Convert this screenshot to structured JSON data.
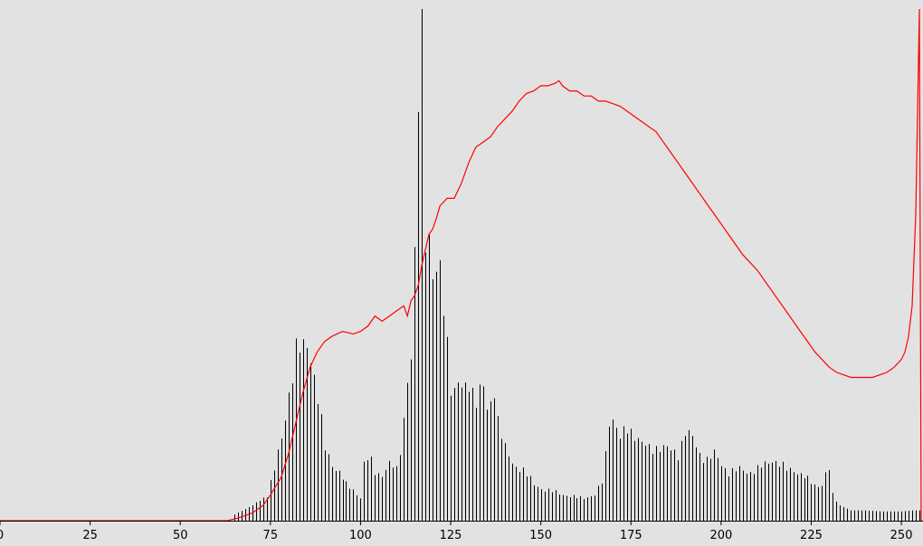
{
  "colors": {
    "background": "#e2e2e2",
    "histogram_bars": "#000000",
    "cumulative_line": "#ff0000",
    "axis": "#000000"
  },
  "chart_data": {
    "type": "bar",
    "title": "",
    "xlabel": "",
    "ylabel": "",
    "grid": false,
    "legend": "none",
    "xlim": [
      0,
      255
    ],
    "xticks": [
      0,
      25,
      50,
      75,
      100,
      125,
      150,
      175,
      200,
      225,
      250
    ],
    "ylim": [
      0,
      1
    ],
    "ylim_note_units": "relative frequency (fraction of tallest bin)",
    "histogram": {
      "anchors": [
        [
          0,
          0
        ],
        [
          64,
          0
        ],
        [
          65,
          0.012
        ],
        [
          70,
          0.03
        ],
        [
          74,
          0.05
        ],
        [
          76,
          0.1
        ],
        [
          78,
          0.16
        ],
        [
          80,
          0.25
        ],
        [
          82,
          0.33
        ],
        [
          84,
          0.335
        ],
        [
          85,
          0.345
        ],
        [
          86,
          0.325
        ],
        [
          88,
          0.24
        ],
        [
          90,
          0.14
        ],
        [
          92,
          0.11
        ],
        [
          94,
          0.095
        ],
        [
          96,
          0.07
        ],
        [
          98,
          0.06
        ],
        [
          100,
          0.045
        ],
        [
          101,
          0.11
        ],
        [
          102,
          0.12
        ],
        [
          103,
          0.115
        ],
        [
          104,
          0.095
        ],
        [
          106,
          0.09
        ],
        [
          108,
          0.11
        ],
        [
          110,
          0.1
        ],
        [
          111,
          0.14
        ],
        [
          112,
          0.2
        ],
        [
          113,
          0.28
        ],
        [
          114,
          0.31
        ],
        [
          115,
          0.5
        ],
        [
          116,
          0.82
        ],
        [
          117,
          1.0
        ],
        [
          118,
          0.58
        ],
        [
          119,
          0.55
        ],
        [
          120,
          0.48
        ],
        [
          121,
          0.47
        ],
        [
          122,
          0.48
        ],
        [
          123,
          0.42
        ],
        [
          124,
          0.35
        ],
        [
          125,
          0.27
        ],
        [
          126,
          0.25
        ],
        [
          127,
          0.27
        ],
        [
          128,
          0.25
        ],
        [
          130,
          0.27
        ],
        [
          132,
          0.24
        ],
        [
          134,
          0.26
        ],
        [
          135,
          0.21
        ],
        [
          136,
          0.23
        ],
        [
          137,
          0.26
        ],
        [
          138,
          0.2
        ],
        [
          140,
          0.14
        ],
        [
          142,
          0.11
        ],
        [
          145,
          0.1
        ],
        [
          148,
          0.07
        ],
        [
          150,
          0.063
        ],
        [
          155,
          0.053
        ],
        [
          158,
          0.048
        ],
        [
          160,
          0.045
        ],
        [
          162,
          0.045
        ],
        [
          165,
          0.05
        ],
        [
          167,
          0.075
        ],
        [
          168,
          0.13
        ],
        [
          169,
          0.2
        ],
        [
          170,
          0.2
        ],
        [
          172,
          0.16
        ],
        [
          174,
          0.18
        ],
        [
          176,
          0.17
        ],
        [
          178,
          0.15
        ],
        [
          180,
          0.14
        ],
        [
          183,
          0.145
        ],
        [
          185,
          0.14
        ],
        [
          188,
          0.13
        ],
        [
          190,
          0.175
        ],
        [
          192,
          0.16
        ],
        [
          194,
          0.13
        ],
        [
          196,
          0.12
        ],
        [
          198,
          0.13
        ],
        [
          200,
          0.11
        ],
        [
          202,
          0.095
        ],
        [
          205,
          0.1
        ],
        [
          208,
          0.095
        ],
        [
          210,
          0.1
        ],
        [
          212,
          0.11
        ],
        [
          214,
          0.12
        ],
        [
          216,
          0.11
        ],
        [
          218,
          0.1
        ],
        [
          220,
          0.1
        ],
        [
          222,
          0.09
        ],
        [
          224,
          0.08
        ],
        [
          226,
          0.07
        ],
        [
          228,
          0.07
        ],
        [
          229,
          0.09
        ],
        [
          230,
          0.1
        ],
        [
          231,
          0.05
        ],
        [
          233,
          0.03
        ],
        [
          236,
          0.02
        ],
        [
          240,
          0.02
        ],
        [
          245,
          0.018
        ],
        [
          250,
          0.018
        ],
        [
          253,
          0.02
        ],
        [
          255,
          0.02
        ]
      ]
    },
    "cumulative_curve": {
      "note": "red overlay line, values as fraction of plot height",
      "points": [
        [
          0,
          0
        ],
        [
          63,
          0
        ],
        [
          66,
          0.005
        ],
        [
          70,
          0.015
        ],
        [
          73,
          0.03
        ],
        [
          75,
          0.05
        ],
        [
          78,
          0.085
        ],
        [
          80,
          0.13
        ],
        [
          82,
          0.19
        ],
        [
          84,
          0.25
        ],
        [
          86,
          0.3
        ],
        [
          88,
          0.33
        ],
        [
          90,
          0.35
        ],
        [
          92,
          0.36
        ],
        [
          95,
          0.37
        ],
        [
          98,
          0.365
        ],
        [
          100,
          0.37
        ],
        [
          102,
          0.38
        ],
        [
          104,
          0.4
        ],
        [
          106,
          0.39
        ],
        [
          108,
          0.4
        ],
        [
          110,
          0.41
        ],
        [
          112,
          0.42
        ],
        [
          113,
          0.4
        ],
        [
          114,
          0.43
        ],
        [
          115,
          0.44
        ],
        [
          116,
          0.46
        ],
        [
          117,
          0.5
        ],
        [
          118,
          0.53
        ],
        [
          119,
          0.56
        ],
        [
          120,
          0.57
        ],
        [
          121,
          0.59
        ],
        [
          122,
          0.615
        ],
        [
          124,
          0.63
        ],
        [
          126,
          0.63
        ],
        [
          128,
          0.66
        ],
        [
          130,
          0.7
        ],
        [
          132,
          0.73
        ],
        [
          134,
          0.74
        ],
        [
          136,
          0.75
        ],
        [
          138,
          0.77
        ],
        [
          140,
          0.785
        ],
        [
          142,
          0.8
        ],
        [
          144,
          0.82
        ],
        [
          146,
          0.835
        ],
        [
          148,
          0.84
        ],
        [
          150,
          0.85
        ],
        [
          152,
          0.85
        ],
        [
          154,
          0.855
        ],
        [
          155,
          0.86
        ],
        [
          156,
          0.85
        ],
        [
          158,
          0.84
        ],
        [
          160,
          0.84
        ],
        [
          162,
          0.83
        ],
        [
          164,
          0.83
        ],
        [
          166,
          0.82
        ],
        [
          168,
          0.82
        ],
        [
          170,
          0.815
        ],
        [
          172,
          0.81
        ],
        [
          174,
          0.8
        ],
        [
          176,
          0.79
        ],
        [
          178,
          0.78
        ],
        [
          180,
          0.77
        ],
        [
          182,
          0.76
        ],
        [
          184,
          0.74
        ],
        [
          186,
          0.72
        ],
        [
          188,
          0.7
        ],
        [
          190,
          0.68
        ],
        [
          192,
          0.66
        ],
        [
          194,
          0.64
        ],
        [
          196,
          0.62
        ],
        [
          198,
          0.6
        ],
        [
          200,
          0.58
        ],
        [
          202,
          0.56
        ],
        [
          204,
          0.54
        ],
        [
          206,
          0.52
        ],
        [
          208,
          0.505
        ],
        [
          210,
          0.49
        ],
        [
          212,
          0.47
        ],
        [
          214,
          0.45
        ],
        [
          216,
          0.43
        ],
        [
          218,
          0.41
        ],
        [
          220,
          0.39
        ],
        [
          222,
          0.37
        ],
        [
          224,
          0.35
        ],
        [
          226,
          0.33
        ],
        [
          228,
          0.315
        ],
        [
          230,
          0.3
        ],
        [
          232,
          0.29
        ],
        [
          234,
          0.285
        ],
        [
          236,
          0.28
        ],
        [
          238,
          0.28
        ],
        [
          240,
          0.28
        ],
        [
          242,
          0.28
        ],
        [
          244,
          0.285
        ],
        [
          246,
          0.29
        ],
        [
          248,
          0.3
        ],
        [
          250,
          0.315
        ],
        [
          251,
          0.33
        ],
        [
          252,
          0.36
        ],
        [
          253,
          0.42
        ],
        [
          254,
          0.6
        ],
        [
          255,
          1.0
        ],
        [
          255.5,
          0.0
        ]
      ]
    }
  }
}
